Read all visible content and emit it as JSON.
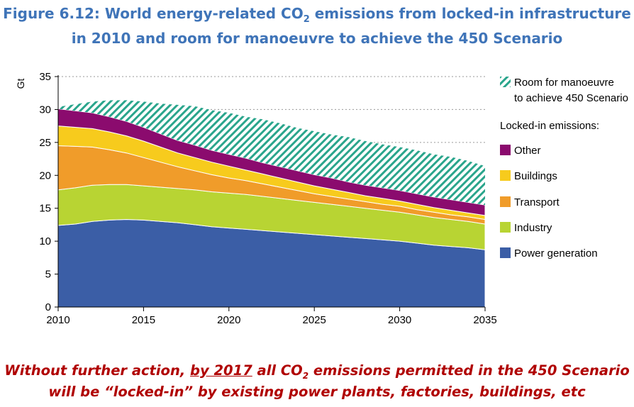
{
  "figure": {
    "title_line1_pre": "Figure 6.12: World energy-related CO",
    "title_line1_sub": "2",
    "title_line1_post": " emissions from locked-in infrastructure",
    "title_line2": "in 2010 and room for manoeuvre to achieve the 450 Scenario"
  },
  "caption": {
    "line1_pre": "Without further action, ",
    "line1_underlined": "by 2017",
    "line1_mid": " all CO",
    "line1_sub": "2",
    "line1_post": " emissions permitted in the 450 Scenario",
    "line2": "will be “locked-in” by existing power plants, factories, buildings, etc"
  },
  "chart_data": {
    "type": "area",
    "stacked": true,
    "ylabel": "Gt",
    "xlabel": "",
    "xlim": [
      2010,
      2035
    ],
    "ylim": [
      0,
      35
    ],
    "xticks": [
      2010,
      2015,
      2020,
      2025,
      2030,
      2035
    ],
    "yticks": [
      0,
      5,
      10,
      15,
      20,
      25,
      30,
      35
    ],
    "grid": "horizontal dotted",
    "legend_position": "right",
    "legend_heading": "Locked-in emissions:",
    "x": [
      2010,
      2011,
      2012,
      2013,
      2014,
      2015,
      2016,
      2017,
      2018,
      2019,
      2020,
      2021,
      2022,
      2023,
      2024,
      2025,
      2026,
      2027,
      2028,
      2029,
      2030,
      2031,
      2032,
      2033,
      2034,
      2035
    ],
    "series": [
      {
        "name": "Power generation",
        "color": "#3b5ea6",
        "values": [
          12.4,
          12.6,
          13.0,
          13.2,
          13.3,
          13.2,
          13.0,
          12.8,
          12.5,
          12.2,
          12.0,
          11.8,
          11.6,
          11.4,
          11.2,
          11.0,
          10.8,
          10.6,
          10.4,
          10.2,
          10.0,
          9.7,
          9.4,
          9.2,
          9.0,
          8.7
        ]
      },
      {
        "name": "Industry",
        "color": "#b8d433",
        "values": [
          5.4,
          5.5,
          5.5,
          5.4,
          5.3,
          5.2,
          5.2,
          5.2,
          5.3,
          5.3,
          5.3,
          5.3,
          5.2,
          5.1,
          5.0,
          4.9,
          4.8,
          4.7,
          4.6,
          4.5,
          4.4,
          4.3,
          4.2,
          4.1,
          4.0,
          3.9
        ]
      },
      {
        "name": "Transport",
        "color": "#f09c2a",
        "values": [
          6.7,
          6.3,
          5.8,
          5.3,
          4.8,
          4.3,
          3.8,
          3.3,
          2.9,
          2.6,
          2.3,
          2.1,
          1.9,
          1.7,
          1.5,
          1.3,
          1.2,
          1.1,
          1.0,
          0.9,
          0.9,
          0.8,
          0.8,
          0.7,
          0.7,
          0.7
        ]
      },
      {
        "name": "Buildings",
        "color": "#f7cb1d",
        "values": [
          3.0,
          2.9,
          2.8,
          2.7,
          2.6,
          2.5,
          2.3,
          2.1,
          2.0,
          1.9,
          1.8,
          1.6,
          1.5,
          1.4,
          1.3,
          1.2,
          1.1,
          1.0,
          0.9,
          0.9,
          0.8,
          0.8,
          0.7,
          0.7,
          0.6,
          0.6
        ]
      },
      {
        "name": "Other",
        "color": "#8b0b6e",
        "values": [
          2.6,
          2.5,
          2.4,
          2.3,
          2.2,
          2.1,
          2.0,
          1.9,
          1.9,
          1.8,
          1.8,
          1.8,
          1.7,
          1.7,
          1.7,
          1.7,
          1.7,
          1.6,
          1.6,
          1.6,
          1.6,
          1.6,
          1.6,
          1.6,
          1.6,
          1.6
        ]
      },
      {
        "name": "Room for manoeuvre to achieve 450 Scenario",
        "color": "#2aa58c",
        "pattern": "hatched",
        "values": [
          0.3,
          1.0,
          1.7,
          2.5,
          3.2,
          3.9,
          4.6,
          5.4,
          5.9,
          6.1,
          6.3,
          6.3,
          6.6,
          6.6,
          6.5,
          6.6,
          6.6,
          6.8,
          6.7,
          6.6,
          6.6,
          6.6,
          6.5,
          6.5,
          6.3,
          5.9
        ]
      }
    ],
    "legend": [
      {
        "key": "room",
        "label_line1": "Room for manoeuvre",
        "label_line2": "to achieve 450 Scenario",
        "color": "#2aa58c",
        "pattern": "hatched"
      },
      {
        "key": "other",
        "label": "Other",
        "color": "#8b0b6e"
      },
      {
        "key": "buildings",
        "label": "Buildings",
        "color": "#f7cb1d"
      },
      {
        "key": "transport",
        "label": "Transport",
        "color": "#f09c2a"
      },
      {
        "key": "industry",
        "label": "Industry",
        "color": "#b8d433"
      },
      {
        "key": "power",
        "label": "Power generation",
        "color": "#3b5ea6"
      }
    ]
  }
}
